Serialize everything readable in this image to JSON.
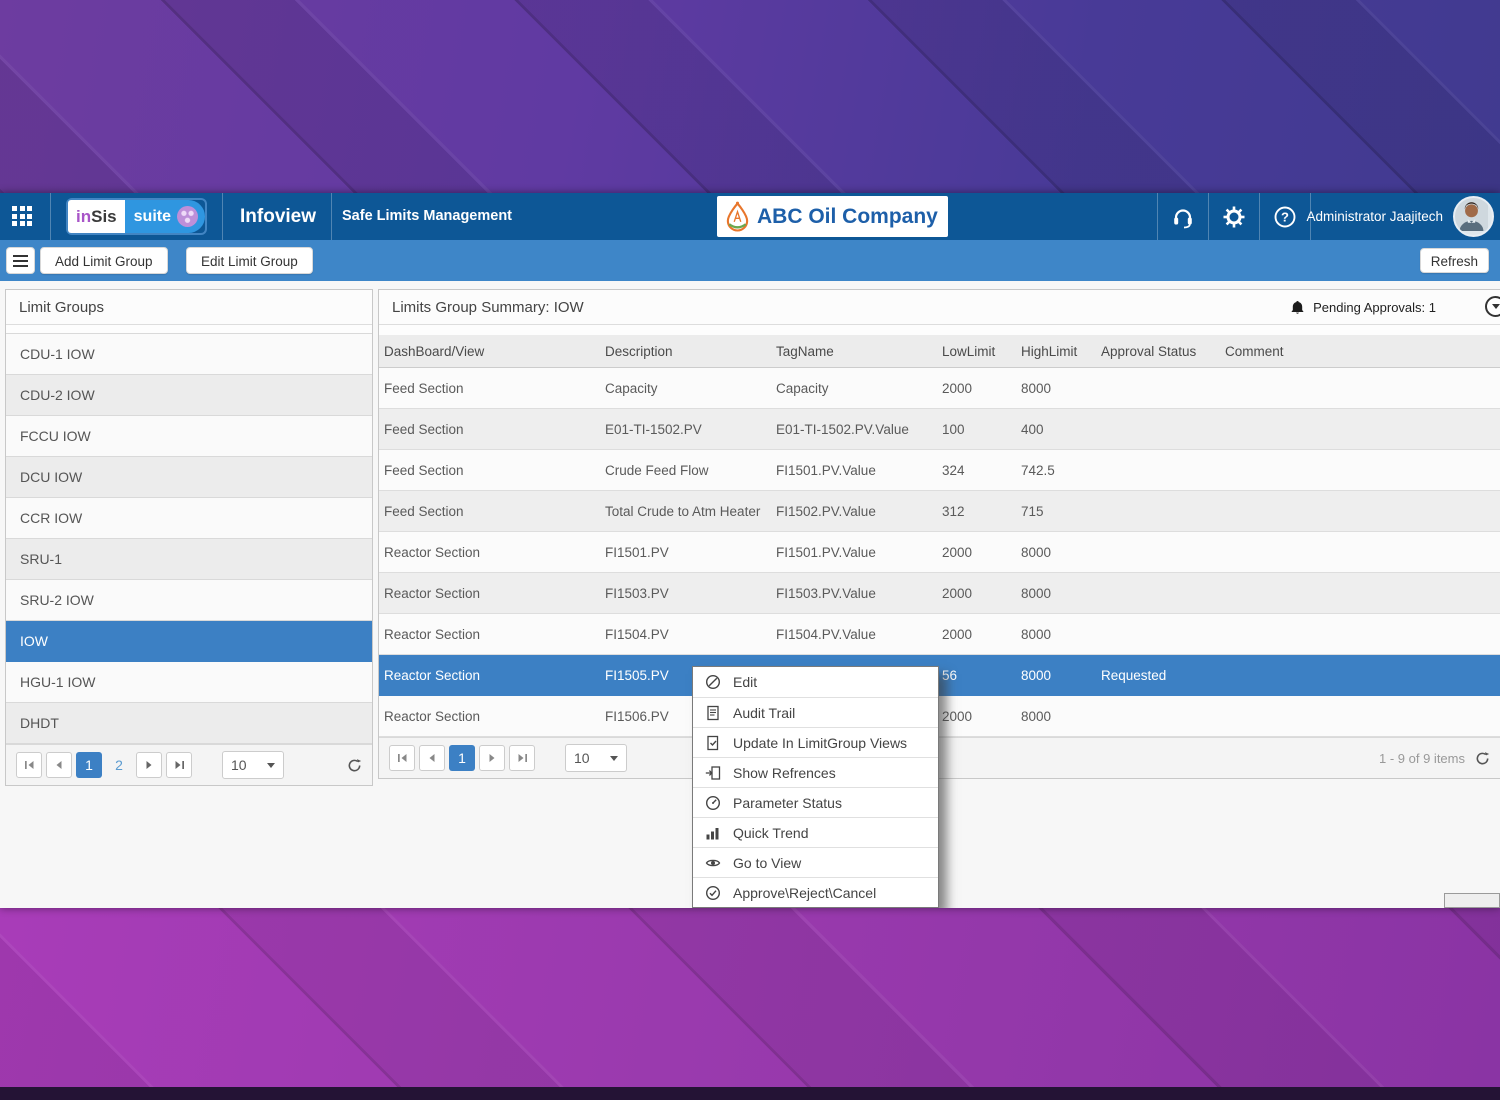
{
  "header": {
    "logo_in": "in",
    "logo_sis": "Sis",
    "logo_suite": "suite",
    "app_name": "Infoview",
    "module_name": "Safe Limits Management",
    "company_name": "ABC Oil Company",
    "user_name": "Administrator Jaajitech"
  },
  "toolbar": {
    "add_limit_group": "Add Limit Group",
    "edit_limit_group": "Edit Limit Group",
    "refresh": "Refresh"
  },
  "left_panel": {
    "title": "Limit Groups",
    "items": [
      {
        "label": "CDU-1 IOW",
        "selected": false
      },
      {
        "label": "CDU-2 IOW",
        "selected": false
      },
      {
        "label": "FCCU IOW",
        "selected": false
      },
      {
        "label": "DCU IOW",
        "selected": false
      },
      {
        "label": "CCR IOW",
        "selected": false
      },
      {
        "label": "SRU-1",
        "selected": false
      },
      {
        "label": "SRU-2 IOW",
        "selected": false
      },
      {
        "label": "IOW",
        "selected": true
      },
      {
        "label": "HGU-1 IOW",
        "selected": false
      },
      {
        "label": "DHDT",
        "selected": false
      }
    ],
    "pager": {
      "page_1": "1",
      "page_2": "2",
      "page_size": "10"
    }
  },
  "main_panel": {
    "title": "Limits Group Summary: IOW",
    "pending_approvals": "Pending Approvals: 1",
    "table": {
      "columns": [
        "DashBoard/View",
        "Description",
        "TagName",
        "LowLimit",
        "HighLimit",
        "Approval Status",
        "Comment"
      ],
      "rows": [
        [
          "Feed Section",
          "Capacity",
          "Capacity",
          "2000",
          "8000",
          "",
          ""
        ],
        [
          "Feed Section",
          "E01-TI-1502.PV",
          "E01-TI-1502.PV.Value",
          "100",
          "400",
          "",
          ""
        ],
        [
          "Feed Section",
          "Crude Feed Flow",
          "FI1501.PV.Value",
          "324",
          "742.5",
          "",
          ""
        ],
        [
          "Feed Section",
          "Total Crude to Atm Heater",
          "FI1502.PV.Value",
          "312",
          "715",
          "",
          ""
        ],
        [
          "Reactor Section",
          "FI1501.PV",
          "FI1501.PV.Value",
          "2000",
          "8000",
          "",
          ""
        ],
        [
          "Reactor Section",
          "FI1503.PV",
          "FI1503.PV.Value",
          "2000",
          "8000",
          "",
          ""
        ],
        [
          "Reactor Section",
          "FI1504.PV",
          "FI1504.PV.Value",
          "2000",
          "8000",
          "",
          ""
        ],
        [
          "Reactor Section",
          "FI1505.PV",
          "",
          "56",
          "8000",
          "Requested",
          ""
        ],
        [
          "Reactor Section",
          "FI1506.PV",
          "",
          "2000",
          "8000",
          "",
          ""
        ]
      ],
      "selected_row_index": 7
    },
    "pager": {
      "page_1": "1",
      "page_size": "10",
      "items_label": "1 - 9 of 9 items"
    }
  },
  "context_menu": {
    "items": [
      {
        "label": "Edit",
        "icon": "edit-icon"
      },
      {
        "label": "Audit Trail",
        "icon": "audit-trail-icon"
      },
      {
        "label": "Update In LimitGroup Views",
        "icon": "update-limitgroup-icon"
      },
      {
        "label": "Show Refrences",
        "icon": "show-references-icon"
      },
      {
        "label": "Parameter Status",
        "icon": "parameter-status-icon"
      },
      {
        "label": "Quick Trend",
        "icon": "quick-trend-icon"
      },
      {
        "label": "Go to View",
        "icon": "go-to-view-icon"
      },
      {
        "label": "Approve\\Reject\\Cancel",
        "icon": "approve-reject-cancel-icon"
      }
    ]
  },
  "colors": {
    "header_blue": "#0d5796",
    "toolbar_blue": "#3e86c8",
    "accent_blue": "#3c80c4",
    "company_text_blue": "#1d5fa9",
    "logo_orange": "#e8762c",
    "logo_green": "#6aa84f",
    "wallpaper_purple": "#6d3ca0",
    "wallpaper_magenta": "#9a3aae"
  }
}
